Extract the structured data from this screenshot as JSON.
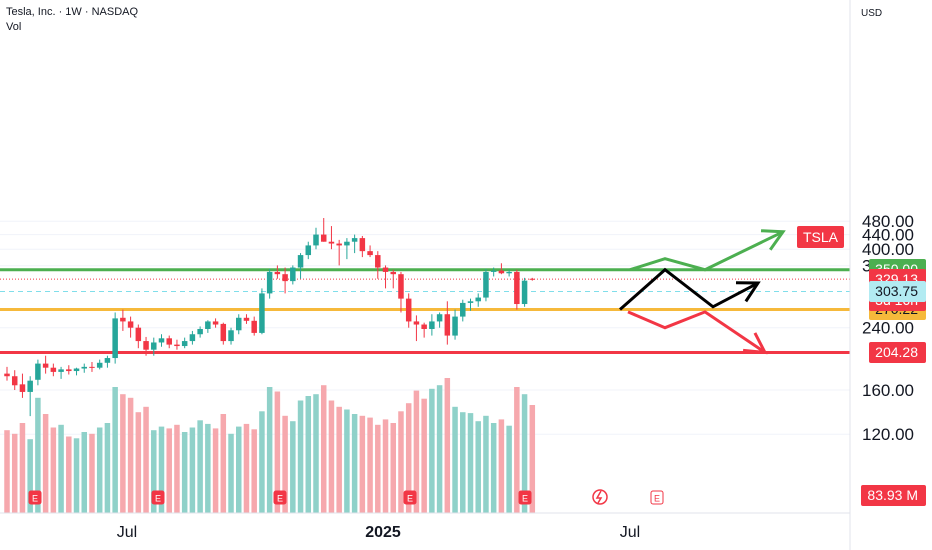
{
  "header": {
    "symbol_line": "Tesla, Inc. · 1W · NASDAQ",
    "volume_label": "Vol"
  },
  "price_axis": {
    "currency": "USD",
    "ticks": [
      {
        "value": 480,
        "label": "480.00"
      },
      {
        "value": 440,
        "label": "440.00"
      },
      {
        "value": 400,
        "label": "400.00"
      },
      {
        "value": 359.32,
        "label": "359.32"
      },
      {
        "value": 240,
        "label": "240.00"
      },
      {
        "value": 160,
        "label": "160.00"
      },
      {
        "value": 120,
        "label": "120.00"
      }
    ]
  },
  "time_axis": [
    {
      "label": "Jul",
      "bold": false
    },
    {
      "label": "2025",
      "bold": true
    },
    {
      "label": "Jul",
      "bold": false
    }
  ],
  "symbol_tag": {
    "text": "TSLA",
    "color": "#f23645"
  },
  "levels": [
    {
      "value": 350.0,
      "label": "350.00",
      "color": "#4caf50"
    },
    {
      "value": 270.22,
      "label": "270.22",
      "color": "#f6b93b"
    },
    {
      "value": 204.28,
      "label": "204.28",
      "color": "#f23645"
    }
  ],
  "last_price": {
    "value": 329.13,
    "label": "329.13",
    "countdown": "3d 16h",
    "color": "#f23645"
  },
  "prev_close": {
    "value": 303.75,
    "label": "303.75",
    "color": "#b2ebf2"
  },
  "volume_last": {
    "label": "83.93 M",
    "color": "#f23645"
  },
  "earnings_marker": "E",
  "colors": {
    "up": "#26a69a",
    "down": "#f23645",
    "vol_up": "#8fd1c9",
    "vol_down": "#f6a8ad"
  },
  "chart_data": {
    "type": "candlestick",
    "interval": "1W",
    "ylim": [
      110,
      505
    ],
    "candles": [
      [
        178,
        186,
        170,
        175
      ],
      [
        175,
        182,
        160,
        165
      ],
      [
        166,
        178,
        152,
        158
      ],
      [
        158,
        175,
        135,
        170
      ],
      [
        171,
        195,
        165,
        190
      ],
      [
        190,
        200,
        178,
        185
      ],
      [
        185,
        190,
        175,
        180
      ],
      [
        180,
        186,
        172,
        183
      ],
      [
        183,
        188,
        177,
        181
      ],
      [
        181,
        185,
        176,
        184
      ],
      [
        184,
        190,
        179,
        186
      ],
      [
        186,
        192,
        180,
        185
      ],
      [
        185,
        195,
        183,
        191
      ],
      [
        191,
        200,
        185,
        197
      ],
      [
        197,
        265,
        190,
        255
      ],
      [
        256,
        270,
        235,
        250
      ],
      [
        250,
        258,
        225,
        240
      ],
      [
        240,
        245,
        210,
        220
      ],
      [
        220,
        226,
        200,
        208
      ],
      [
        208,
        225,
        200,
        218
      ],
      [
        218,
        230,
        212,
        224
      ],
      [
        224,
        228,
        210,
        215
      ],
      [
        215,
        222,
        208,
        213
      ],
      [
        213,
        225,
        210,
        220
      ],
      [
        220,
        235,
        215,
        230
      ],
      [
        230,
        242,
        225,
        238
      ],
      [
        238,
        252,
        232,
        250
      ],
      [
        250,
        255,
        240,
        245
      ],
      [
        246,
        248,
        215,
        220
      ],
      [
        220,
        240,
        215,
        236
      ],
      [
        236,
        262,
        230,
        256
      ],
      [
        256,
        262,
        246,
        251
      ],
      [
        251,
        258,
        228,
        232
      ],
      [
        232,
        310,
        230,
        300
      ],
      [
        300,
        352,
        290,
        345
      ],
      [
        345,
        360,
        330,
        340
      ],
      [
        340,
        355,
        300,
        325
      ],
      [
        325,
        360,
        318,
        355
      ],
      [
        355,
        390,
        330,
        385
      ],
      [
        385,
        420,
        375,
        410
      ],
      [
        410,
        460,
        400,
        440
      ],
      [
        440,
        490,
        420,
        420
      ],
      [
        420,
        465,
        400,
        415
      ],
      [
        415,
        425,
        360,
        410
      ],
      [
        410,
        430,
        375,
        420
      ],
      [
        420,
        440,
        390,
        430
      ],
      [
        430,
        436,
        380,
        395
      ],
      [
        395,
        410,
        380,
        385
      ],
      [
        385,
        395,
        330,
        355
      ],
      [
        355,
        360,
        310,
        345
      ],
      [
        345,
        350,
        310,
        340
      ],
      [
        340,
        345,
        265,
        290
      ],
      [
        290,
        300,
        240,
        250
      ],
      [
        250,
        260,
        220,
        245
      ],
      [
        245,
        248,
        225,
        238
      ],
      [
        238,
        262,
        228,
        250
      ],
      [
        250,
        265,
        240,
        262
      ],
      [
        262,
        285,
        215,
        228
      ],
      [
        228,
        270,
        222,
        258
      ],
      [
        258,
        288,
        250,
        282
      ],
      [
        282,
        290,
        268,
        285
      ],
      [
        285,
        300,
        275,
        292
      ],
      [
        292,
        352,
        285,
        345
      ],
      [
        345,
        355,
        335,
        348
      ],
      [
        348,
        365,
        340,
        342
      ],
      [
        342,
        350,
        335,
        345
      ],
      [
        345,
        350,
        270,
        280
      ],
      [
        280,
        332,
        275,
        326
      ],
      [
        330,
        332,
        326,
        329
      ]
    ],
    "volumes": [
      92,
      88,
      100,
      82,
      128,
      110,
      95,
      98,
      85,
      83,
      90,
      88,
      95,
      100,
      140,
      132,
      128,
      112,
      118,
      92,
      96,
      94,
      98,
      90,
      95,
      103,
      99,
      94,
      110,
      88,
      96,
      99,
      93,
      113,
      140,
      135,
      108,
      102,
      125,
      130,
      132,
      142,
      125,
      118,
      115,
      110,
      108,
      106,
      98,
      104,
      100,
      113,
      122,
      136,
      127,
      138,
      142,
      150,
      118,
      112,
      111,
      102,
      108,
      100,
      104,
      97,
      140,
      132,
      120
    ],
    "projection_paths": [
      {
        "color": "#4caf50",
        "points": [
          [
            630,
            350
          ],
          [
            665,
            376
          ],
          [
            705,
            350
          ],
          [
            783,
            448
          ]
        ]
      },
      {
        "color": "#000000",
        "points": [
          [
            620,
            270.22
          ],
          [
            665,
            350
          ],
          [
            713,
            275
          ],
          [
            758,
            321
          ]
        ]
      },
      {
        "color": "#f23645",
        "points": [
          [
            628,
            266
          ],
          [
            665,
            240
          ],
          [
            705,
            266
          ],
          [
            765,
            204.28
          ]
        ]
      }
    ]
  }
}
